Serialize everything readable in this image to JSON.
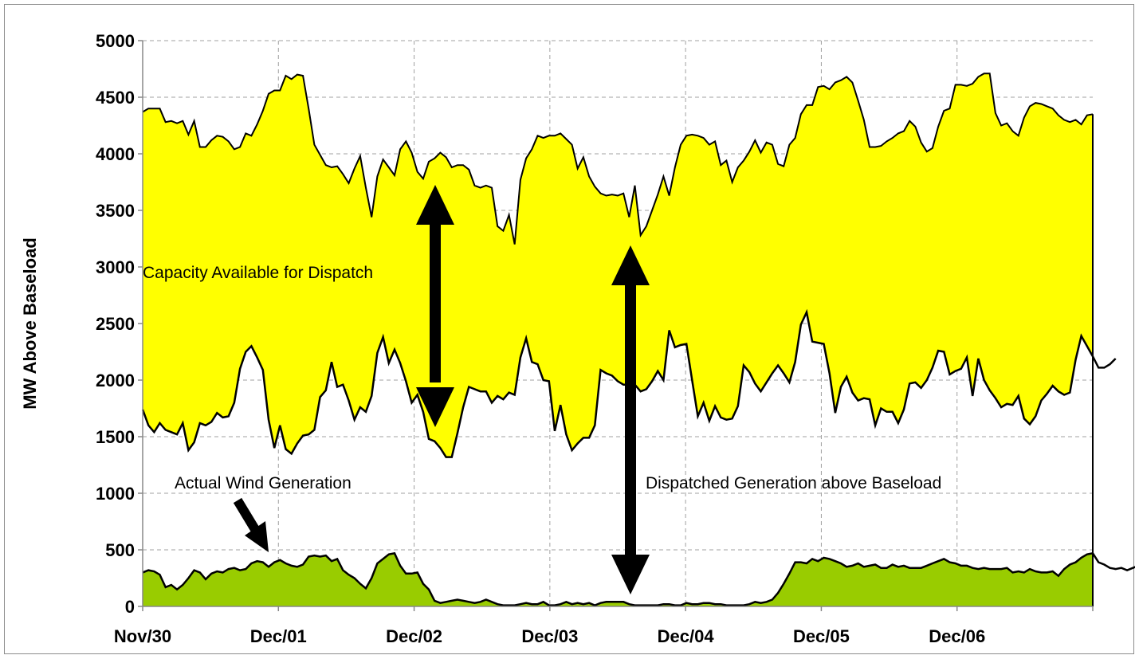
{
  "chart_data": {
    "type": "area",
    "title": "",
    "xlabel": "",
    "ylabel": "MW Above Baseload",
    "ylim": [
      0,
      5000
    ],
    "y_ticks": [
      0,
      500,
      1000,
      1500,
      2000,
      2500,
      3000,
      3500,
      4000,
      4500,
      5000
    ],
    "x_tick_labels": [
      "Nov/30",
      "Dec/01",
      "Dec/02",
      "Dec/03",
      "Dec/04",
      "Dec/05",
      "Dec/06"
    ],
    "x_range_days": [
      0,
      7
    ],
    "grid": true,
    "colors": {
      "capacity_fill": "#ffff00",
      "wind_fill": "#99cc00",
      "line": "#000000",
      "grid": "#a0a0a0"
    },
    "annotations": {
      "capacity": "Capacity Available for Dispatch",
      "wind": "Actual Wind Generation",
      "dispatched": "Dispatched Generation above Baseload"
    },
    "series": [
      {
        "key": "upper",
        "values": [
          4370,
          4400,
          4400,
          4400,
          4280,
          4290,
          4270,
          4290,
          4170,
          4290,
          4060,
          4060,
          4120,
          4160,
          4150,
          4110,
          4040,
          4060,
          4180,
          4160,
          4260,
          4380,
          4530,
          4560,
          4560,
          4690,
          4660,
          4700,
          4690,
          4400,
          4080,
          3990,
          3900,
          3880,
          3890,
          3820,
          3740,
          3870,
          3980,
          3700,
          3440,
          3800,
          3950,
          3880,
          3810,
          4040,
          4110,
          4010,
          3840,
          3780,
          3930,
          3960,
          4010,
          3970,
          3880,
          3900,
          3900,
          3860,
          3720,
          3700,
          3720,
          3700,
          3360,
          3320,
          3460,
          3200,
          3770,
          3960,
          4040,
          4160,
          4140,
          4160,
          4160,
          4180,
          4130,
          4080,
          3870,
          3970,
          3800,
          3710,
          3650,
          3630,
          3640,
          3630,
          3650,
          3440,
          3720,
          3280,
          3360,
          3500,
          3640,
          3800,
          3630,
          3880,
          4080,
          4160,
          4170,
          4160,
          4140,
          4080,
          4110,
          3900,
          3940,
          3750,
          3880,
          3940,
          4020,
          4120,
          4010,
          4100,
          4080,
          3910,
          3890,
          4080,
          4140,
          4350,
          4430,
          4430,
          4590,
          4600,
          4570,
          4630,
          4650,
          4680,
          4630,
          4470,
          4300,
          4060,
          4060,
          4070,
          4110,
          4140,
          4180,
          4200,
          4290,
          4240,
          4100,
          4020,
          4050,
          4240,
          4380,
          4400,
          4610,
          4610,
          4600,
          4620,
          4680,
          4710,
          4710,
          4360,
          4250,
          4270,
          4200,
          4160,
          4320,
          4420,
          4450,
          4440,
          4420,
          4400,
          4340,
          4300,
          4280,
          4300,
          4260,
          4340,
          4350
        ]
      },
      {
        "key": "lower",
        "values": [
          1740,
          1600,
          1540,
          1620,
          1560,
          1540,
          1520,
          1620,
          1380,
          1450,
          1620,
          1600,
          1630,
          1710,
          1670,
          1680,
          1800,
          2100,
          2250,
          2300,
          2200,
          2090,
          1650,
          1400,
          1600,
          1390,
          1350,
          1440,
          1510,
          1520,
          1560,
          1850,
          1910,
          2160,
          1940,
          1960,
          1820,
          1650,
          1760,
          1720,
          1860,
          2240,
          2380,
          2150,
          2270,
          2150,
          1990,
          1800,
          1870,
          1720,
          1480,
          1460,
          1400,
          1320,
          1320,
          1530,
          1760,
          1940,
          1920,
          1900,
          1900,
          1800,
          1860,
          1830,
          1890,
          1870,
          2200,
          2370,
          2160,
          2140,
          2000,
          1990,
          1550,
          1780,
          1520,
          1380,
          1440,
          1490,
          1490,
          1600,
          2090,
          2060,
          2040,
          1990,
          1960,
          1960,
          1960,
          1900,
          1920,
          1990,
          2080,
          2000,
          2440,
          2290,
          2310,
          2320,
          2000,
          1680,
          1800,
          1640,
          1770,
          1670,
          1650,
          1660,
          1770,
          2130,
          2070,
          1970,
          1900,
          1980,
          2060,
          2130,
          2060,
          1980,
          2160,
          2490,
          2600,
          2340,
          2330,
          2320,
          2060,
          1710,
          1940,
          2030,
          1890,
          1820,
          1840,
          1830,
          1600,
          1750,
          1720,
          1720,
          1620,
          1740,
          1970,
          1980,
          1930,
          2000,
          2110,
          2260,
          2250,
          2050,
          2080,
          2100,
          2200,
          1860,
          2190,
          2000,
          1910,
          1840,
          1760,
          1790,
          1780,
          1860,
          1660,
          1610,
          1680,
          1820,
          1880,
          1950,
          1900,
          1870,
          1890,
          2180,
          2390,
          2300,
          2210,
          2110,
          2110,
          2140,
          2190
        ]
      },
      {
        "key": "wind",
        "values": [
          300,
          320,
          310,
          280,
          170,
          190,
          150,
          190,
          250,
          320,
          300,
          240,
          290,
          310,
          300,
          330,
          340,
          320,
          330,
          380,
          400,
          390,
          350,
          390,
          410,
          380,
          360,
          350,
          370,
          440,
          450,
          440,
          450,
          400,
          420,
          320,
          280,
          250,
          200,
          160,
          250,
          380,
          420,
          460,
          470,
          360,
          290,
          290,
          300,
          200,
          150,
          50,
          30,
          40,
          50,
          60,
          50,
          40,
          30,
          40,
          60,
          40,
          20,
          10,
          10,
          10,
          20,
          30,
          20,
          20,
          40,
          10,
          10,
          20,
          40,
          20,
          30,
          20,
          30,
          10,
          30,
          40,
          40,
          40,
          40,
          20,
          10,
          10,
          10,
          10,
          10,
          20,
          20,
          10,
          10,
          30,
          20,
          20,
          30,
          30,
          20,
          20,
          10,
          10,
          10,
          10,
          20,
          40,
          30,
          40,
          60,
          120,
          200,
          290,
          390,
          390,
          380,
          420,
          400,
          430,
          420,
          400,
          380,
          350,
          360,
          380,
          350,
          360,
          370,
          340,
          340,
          370,
          350,
          360,
          340,
          340,
          340,
          360,
          380,
          400,
          420,
          390,
          380,
          360,
          360,
          340,
          330,
          340,
          330,
          330,
          330,
          340,
          300,
          310,
          300,
          330,
          310,
          300,
          300,
          310,
          270,
          330,
          370,
          390,
          430,
          460,
          470,
          390,
          370,
          340,
          330,
          340,
          320,
          340,
          360
        ]
      }
    ]
  }
}
